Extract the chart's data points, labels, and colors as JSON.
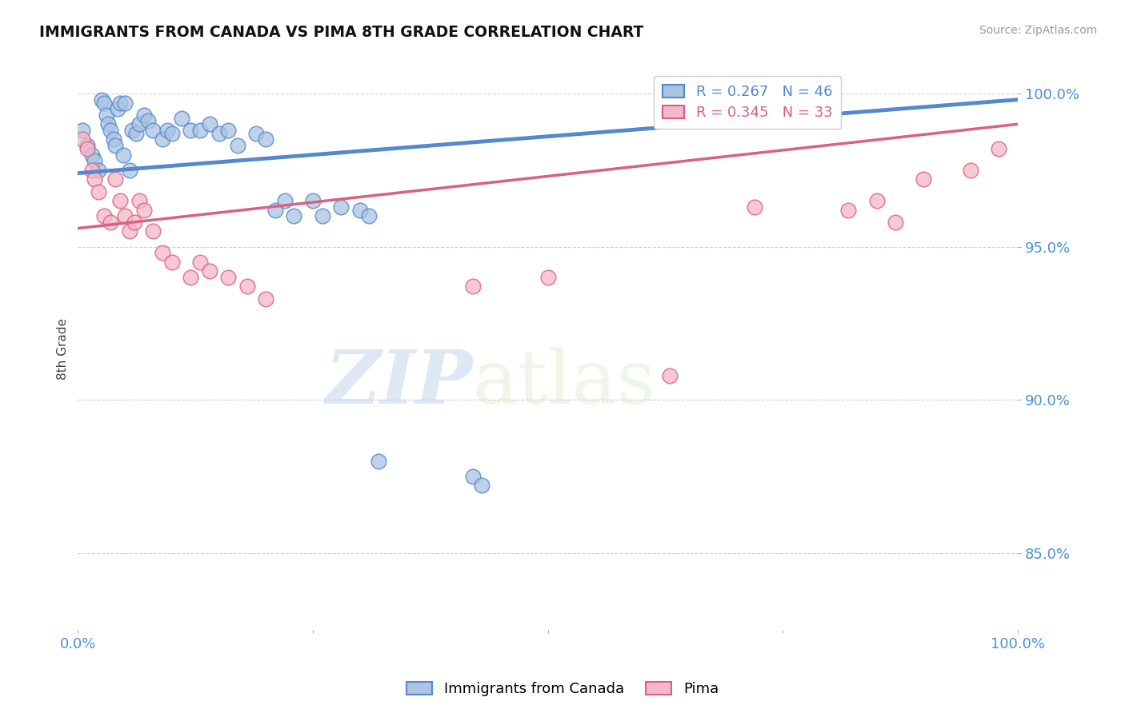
{
  "title": "IMMIGRANTS FROM CANADA VS PIMA 8TH GRADE CORRELATION CHART",
  "source": "Source: ZipAtlas.com",
  "ylabel": "8th Grade",
  "xlim": [
    0.0,
    1.0
  ],
  "ylim": [
    0.825,
    1.008
  ],
  "yticks": [
    0.85,
    0.9,
    0.95,
    1.0
  ],
  "ytick_labels": [
    "85.0%",
    "90.0%",
    "95.0%",
    "100.0%"
  ],
  "xticks": [
    0.0,
    0.25,
    0.5,
    0.75,
    1.0
  ],
  "xtick_labels": [
    "0.0%",
    "",
    "",
    "",
    "100.0%"
  ],
  "blue_R": 0.267,
  "blue_N": 46,
  "pink_R": 0.345,
  "pink_N": 33,
  "blue_color": "#aac4e2",
  "blue_edge_color": "#5588cc",
  "pink_color": "#f5b8c8",
  "pink_edge_color": "#d96080",
  "legend_blue_label": "Immigrants from Canada",
  "legend_pink_label": "Pima",
  "watermark_zip": "ZIP",
  "watermark_atlas": "atlas",
  "background_color": "#ffffff",
  "blue_scatter_x": [
    0.005,
    0.01,
    0.015,
    0.018,
    0.022,
    0.025,
    0.028,
    0.03,
    0.032,
    0.035,
    0.038,
    0.04,
    0.042,
    0.045,
    0.048,
    0.05,
    0.055,
    0.058,
    0.062,
    0.065,
    0.07,
    0.075,
    0.08,
    0.09,
    0.095,
    0.1,
    0.11,
    0.12,
    0.13,
    0.14,
    0.15,
    0.16,
    0.17,
    0.19,
    0.2,
    0.21,
    0.22,
    0.23,
    0.25,
    0.26,
    0.28,
    0.3,
    0.31,
    0.32,
    0.42,
    0.43
  ],
  "blue_scatter_y": [
    0.988,
    0.983,
    0.98,
    0.978,
    0.975,
    0.998,
    0.997,
    0.993,
    0.99,
    0.988,
    0.985,
    0.983,
    0.995,
    0.997,
    0.98,
    0.997,
    0.975,
    0.988,
    0.987,
    0.99,
    0.993,
    0.991,
    0.988,
    0.985,
    0.988,
    0.987,
    0.992,
    0.988,
    0.988,
    0.99,
    0.987,
    0.988,
    0.983,
    0.987,
    0.985,
    0.962,
    0.965,
    0.96,
    0.965,
    0.96,
    0.963,
    0.962,
    0.96,
    0.88,
    0.875,
    0.872
  ],
  "pink_scatter_x": [
    0.005,
    0.01,
    0.015,
    0.018,
    0.022,
    0.028,
    0.035,
    0.04,
    0.045,
    0.05,
    0.055,
    0.06,
    0.065,
    0.07,
    0.08,
    0.09,
    0.1,
    0.12,
    0.13,
    0.14,
    0.16,
    0.18,
    0.2,
    0.42,
    0.5,
    0.63,
    0.72,
    0.82,
    0.85,
    0.87,
    0.9,
    0.95,
    0.98
  ],
  "pink_scatter_y": [
    0.985,
    0.982,
    0.975,
    0.972,
    0.968,
    0.96,
    0.958,
    0.972,
    0.965,
    0.96,
    0.955,
    0.958,
    0.965,
    0.962,
    0.955,
    0.948,
    0.945,
    0.94,
    0.945,
    0.942,
    0.94,
    0.937,
    0.933,
    0.937,
    0.94,
    0.908,
    0.963,
    0.962,
    0.965,
    0.958,
    0.972,
    0.975,
    0.982
  ],
  "blue_line_x": [
    0.0,
    1.0
  ],
  "blue_line_y": [
    0.974,
    0.998
  ],
  "pink_line_x": [
    0.0,
    1.0
  ],
  "pink_line_y": [
    0.956,
    0.99
  ],
  "dot_size": 180,
  "dot_linewidth": 1.2
}
